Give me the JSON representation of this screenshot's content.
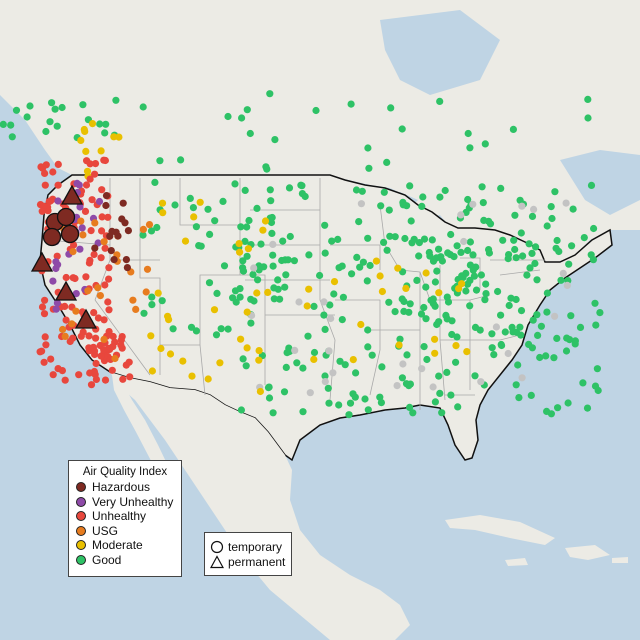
{
  "map": {
    "colors": {
      "ocean": "#bfd4e4",
      "land": "#ecebe5",
      "border": "#111111",
      "state_line": "#a9a9a9"
    },
    "aqi_colors": {
      "Hazardous": "#7e2a22",
      "Very Unhealthy": "#8e4aa8",
      "Unhealthy": "#e8473d",
      "USG": "#e77c1f",
      "Moderate": "#e9c000",
      "Good": "#2ec266",
      "No data": "#c3c3c3"
    }
  },
  "legend": {
    "title": "Air Quality Index",
    "items": [
      {
        "label": "Hazardous",
        "color": "#7e2a22"
      },
      {
        "label": "Very Unhealthy",
        "color": "#8e4aa8"
      },
      {
        "label": "Unhealthy",
        "color": "#e8473d"
      },
      {
        "label": "USG",
        "color": "#e77c1f"
      },
      {
        "label": "Moderate",
        "color": "#e9c000"
      },
      {
        "label": "Good",
        "color": "#2ec266"
      }
    ]
  },
  "shape_legend": {
    "items": [
      {
        "label": "temporary",
        "shape": "circle"
      },
      {
        "label": "permanent",
        "shape": "triangle"
      }
    ]
  }
}
